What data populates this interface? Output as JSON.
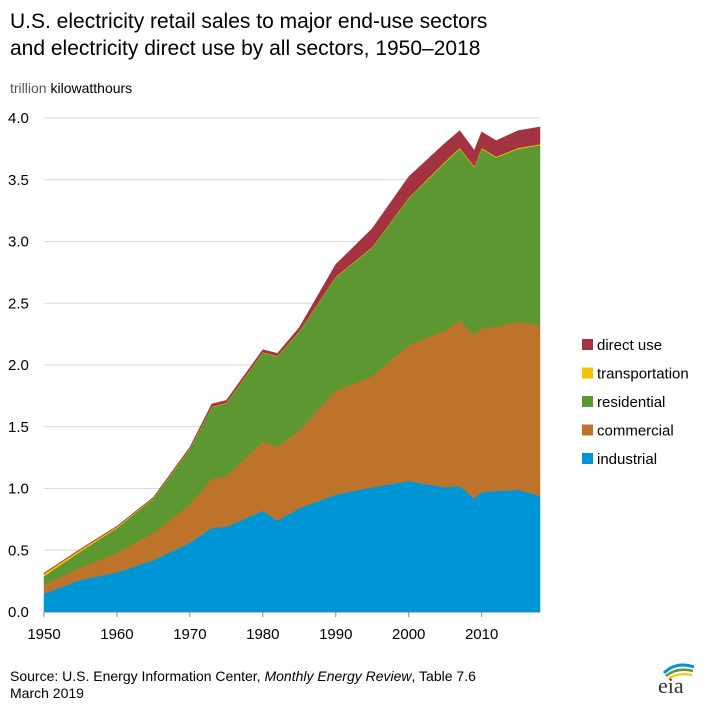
{
  "title_line1": "U.S. electricity retail sales to major end-use sectors",
  "title_line2": "and electricity direct use by all sectors, 1950–2018",
  "units_prefix": "trillion",
  "units_suffix": "kilowatthours",
  "source": {
    "prefix": "Source: U.S. Energy Information Center, ",
    "italic": "Monthly Energy Review",
    "suffix": ", Table 7.6",
    "date": "March 2019"
  },
  "logo_text": "eia",
  "chart_data": {
    "type": "area",
    "stacked": true,
    "ylabel": "trillion kilowatthours",
    "ylim": [
      0,
      4.0
    ],
    "xlim": [
      1950,
      2018
    ],
    "yticks": [
      "0.0",
      "0.5",
      "1.0",
      "1.5",
      "2.0",
      "2.5",
      "3.0",
      "3.5",
      "4.0"
    ],
    "xticks": [
      "1950",
      "1960",
      "1970",
      "1980",
      "1990",
      "2000",
      "2010"
    ],
    "grid": "horizontal",
    "legend_position": "right",
    "x": [
      1950,
      1955,
      1960,
      1965,
      1970,
      1973,
      1975,
      1980,
      1982,
      1985,
      1990,
      1995,
      2000,
      2005,
      2007,
      2009,
      2010,
      2012,
      2015,
      2018
    ],
    "series": [
      {
        "name": "industrial",
        "color": "#0096d6",
        "values": [
          0.15,
          0.26,
          0.32,
          0.42,
          0.56,
          0.68,
          0.69,
          0.82,
          0.74,
          0.84,
          0.95,
          1.01,
          1.06,
          1.01,
          1.02,
          0.92,
          0.97,
          0.98,
          0.99,
          0.94
        ]
      },
      {
        "name": "commercial",
        "color": "#bd732a",
        "values": [
          0.07,
          0.1,
          0.16,
          0.22,
          0.31,
          0.4,
          0.41,
          0.56,
          0.6,
          0.63,
          0.84,
          0.9,
          1.1,
          1.27,
          1.34,
          1.32,
          1.33,
          1.33,
          1.36,
          1.38
        ]
      },
      {
        "name": "residential",
        "color": "#5d9732",
        "values": [
          0.07,
          0.13,
          0.2,
          0.28,
          0.45,
          0.58,
          0.59,
          0.72,
          0.73,
          0.8,
          0.92,
          1.04,
          1.19,
          1.36,
          1.39,
          1.36,
          1.45,
          1.37,
          1.4,
          1.46
        ]
      },
      {
        "name": "transportation",
        "color": "#f5c400",
        "values": [
          0.02,
          0.015,
          0.01,
          0.005,
          0.005,
          0.004,
          0.004,
          0.004,
          0.004,
          0.004,
          0.005,
          0.005,
          0.005,
          0.008,
          0.008,
          0.008,
          0.008,
          0.007,
          0.008,
          0.008
        ]
      },
      {
        "name": "direct use",
        "color": "#a33340",
        "values": [
          0.005,
          0.005,
          0.005,
          0.005,
          0.01,
          0.02,
          0.02,
          0.02,
          0.02,
          0.03,
          0.1,
          0.15,
          0.17,
          0.15,
          0.14,
          0.13,
          0.13,
          0.13,
          0.14,
          0.14
        ]
      }
    ]
  }
}
